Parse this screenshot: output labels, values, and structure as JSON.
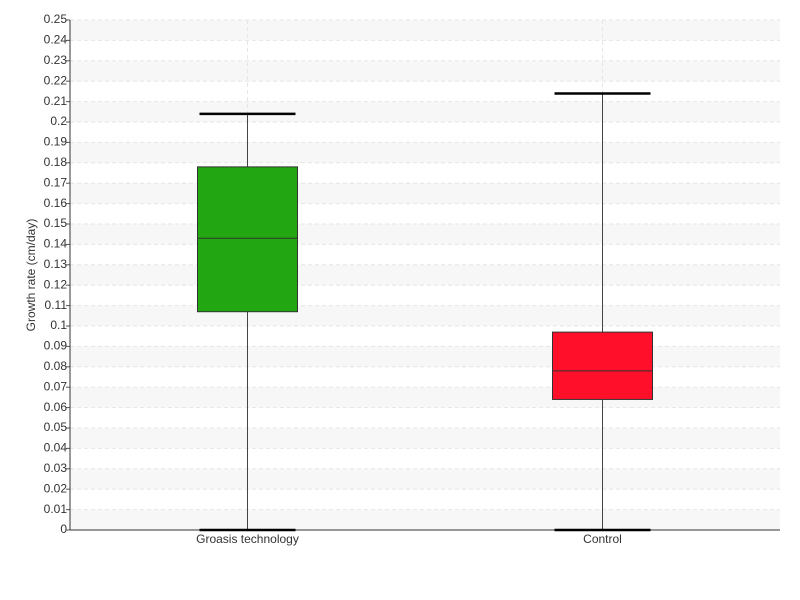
{
  "chart_data": {
    "type": "box",
    "y_label": "Growth rate (cm/day)",
    "categories": [
      "Groasis technology",
      "Control"
    ],
    "boxes": [
      {
        "min": 0,
        "q1": 0.107,
        "median": 0.143,
        "q3": 0.178,
        "max": 0.204,
        "color": "#22a612"
      },
      {
        "min": 0,
        "q1": 0.064,
        "median": 0.078,
        "q3": 0.097,
        "max": 0.214,
        "color": "#ff0f2a"
      }
    ],
    "ylim": [
      0,
      0.25
    ],
    "yticks": [
      0,
      0.01,
      0.02,
      0.03,
      0.04,
      0.05,
      0.06,
      0.07,
      0.08,
      0.09,
      0.1,
      0.11,
      0.12,
      0.13,
      0.14,
      0.15,
      0.16,
      0.17,
      0.18,
      0.19,
      0.2,
      0.21,
      0.22,
      0.23,
      0.24,
      0.25
    ],
    "grid": true
  }
}
